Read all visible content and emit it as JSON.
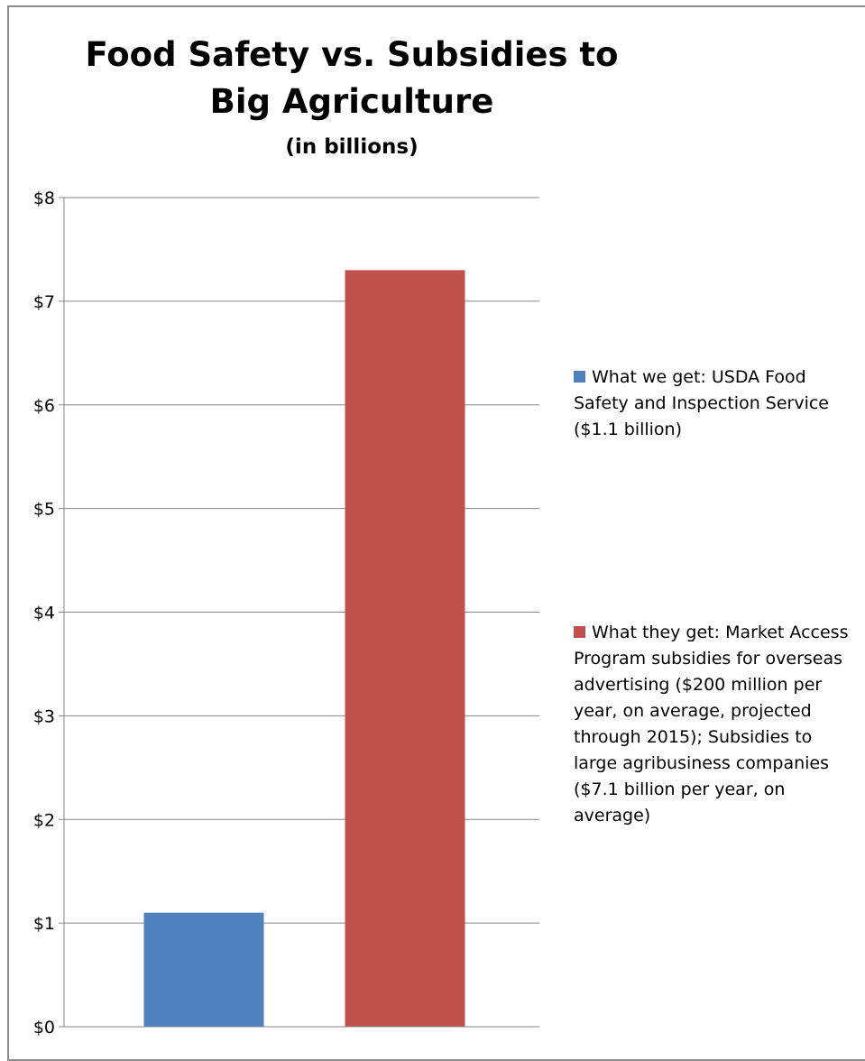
{
  "chart_data": {
    "type": "bar",
    "title_lines": [
      "Food Safety vs. Subsidies to",
      "Big Agriculture"
    ],
    "subtitle": "(in billions)",
    "categories": [
      "",
      ""
    ],
    "series": [
      {
        "name": "What we get: USDA Food Safety and Inspection Service ($1.1 billion)",
        "value": 1.1,
        "color": "#4f81bd"
      },
      {
        "name": "What they get: Market Access Program subsidies for overseas advertising ($200 million per year, on average, projected through 2015); Subsidies to large agribusiness companies ($7.1 billion per year, on average)",
        "value": 7.3,
        "color": "#c0504d"
      }
    ],
    "ylim": [
      0,
      8
    ],
    "yticks": [
      0,
      1,
      2,
      3,
      4,
      5,
      6,
      7,
      8
    ],
    "ytick_labels": [
      "$0",
      "$1",
      "$2",
      "$3",
      "$4",
      "$5",
      "$6",
      "$7",
      "$8"
    ],
    "grid": true,
    "legend_position": "right"
  }
}
